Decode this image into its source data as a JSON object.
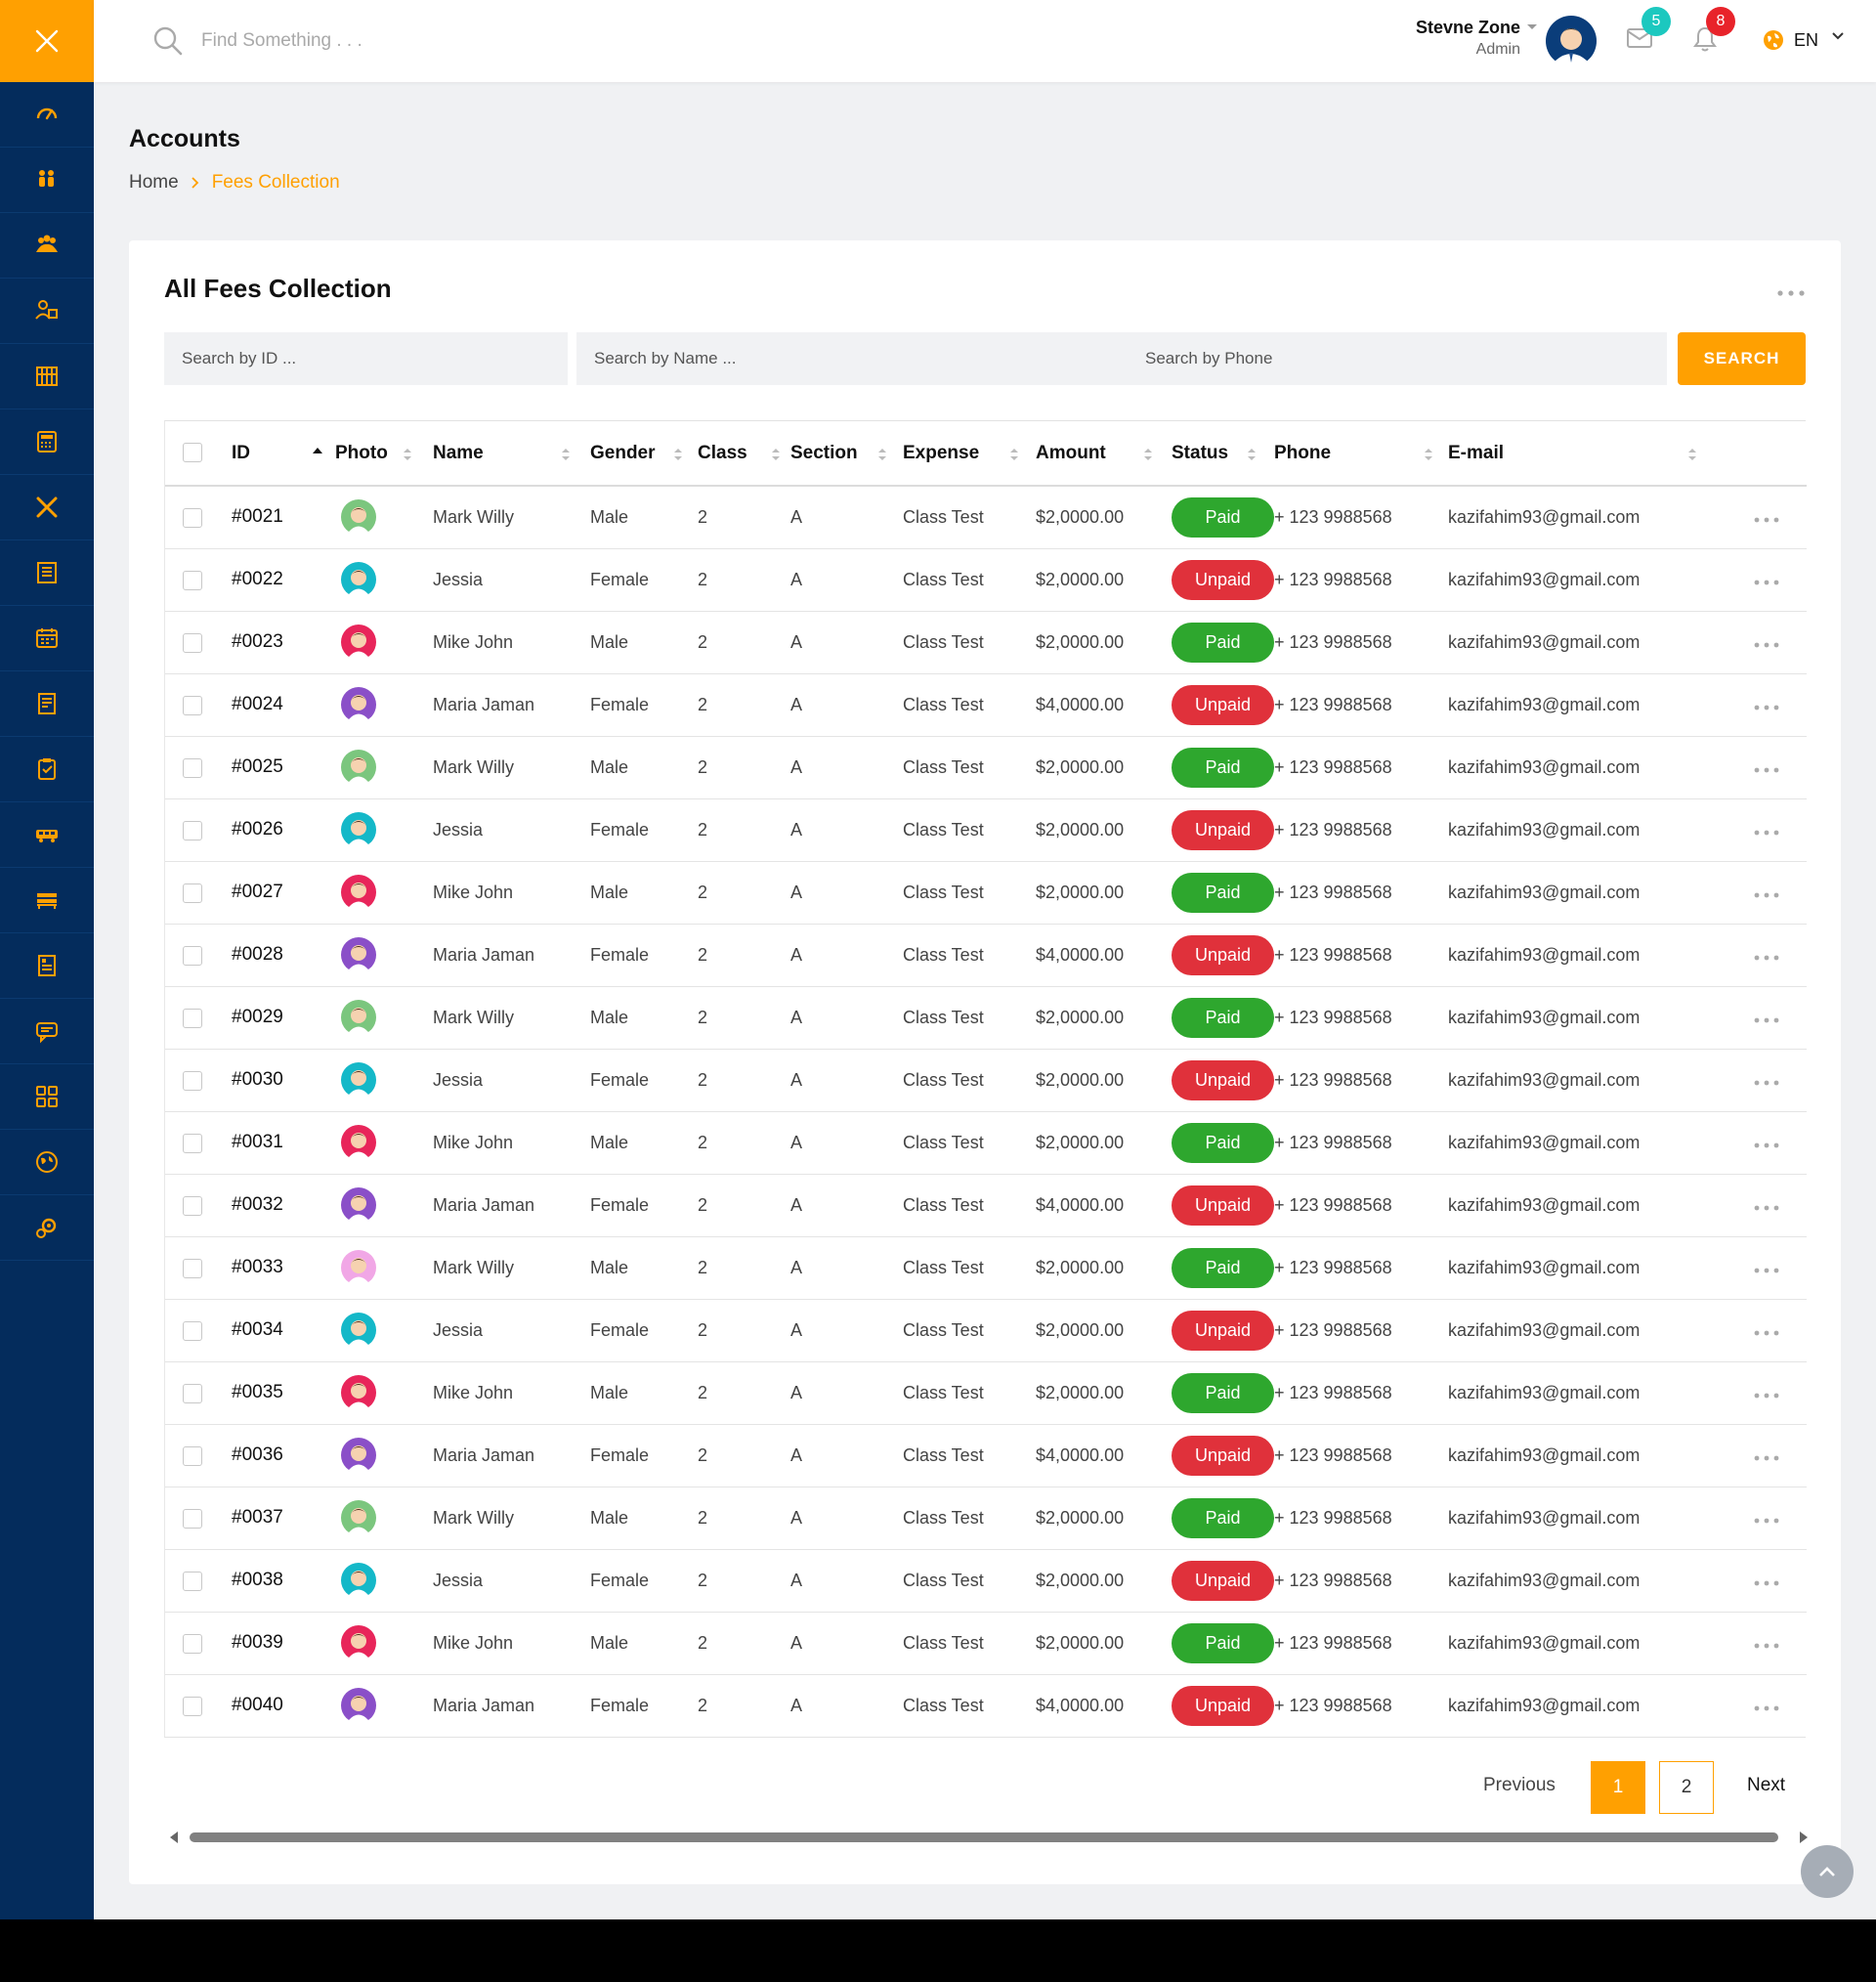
{
  "header": {
    "search_placeholder": "Find Something . . .",
    "user_name": "Stevne Zone",
    "user_role": "Admin",
    "messages_count": "5",
    "notifications_count": "8",
    "language": "EN"
  },
  "sidebar": {
    "items": [
      "dashboard-icon",
      "students-icon",
      "parents-icon",
      "teachers-icon",
      "library-icon",
      "accounts-icon",
      "subjects-icon",
      "class-routine-icon",
      "attendance-icon",
      "exam-icon",
      "result-icon",
      "transport-icon",
      "hostel-icon",
      "notice-icon",
      "message-icon",
      "ui-elements-icon",
      "map-icon",
      "settings-icon"
    ]
  },
  "page": {
    "title": "Accounts",
    "breadcrumb_home": "Home",
    "breadcrumb_current": "Fees Collection"
  },
  "card": {
    "title": "All Fees Collection",
    "filter_id_placeholder": "Search by ID ...",
    "filter_name_placeholder": "Search by Name ...",
    "filter_phone_placeholder": "Search by Phone",
    "search_button": "SEARCH"
  },
  "table": {
    "columns": [
      "ID",
      "Photo",
      "Name",
      "Gender",
      "Class",
      "Section",
      "Expense",
      "Amount",
      "Status",
      "Phone",
      "E-mail"
    ],
    "rows": [
      {
        "id": "#0021",
        "avatar": "green",
        "name": "Mark Willy",
        "gender": "Male",
        "class": "2",
        "section": "A",
        "expense": "Class Test",
        "amount": "$2,0000.00",
        "status": "Paid",
        "phone": "+ 123 9988568",
        "email": "kazifahim93@gmail.com"
      },
      {
        "id": "#0022",
        "avatar": "teal",
        "name": "Jessia",
        "gender": "Female",
        "class": "2",
        "section": "A",
        "expense": "Class Test",
        "amount": "$2,0000.00",
        "status": "Unpaid",
        "phone": "+ 123 9988568",
        "email": "kazifahim93@gmail.com"
      },
      {
        "id": "#0023",
        "avatar": "pink",
        "name": "Mike John",
        "gender": "Male",
        "class": "2",
        "section": "A",
        "expense": "Class Test",
        "amount": "$2,0000.00",
        "status": "Paid",
        "phone": "+ 123 9988568",
        "email": "kazifahim93@gmail.com"
      },
      {
        "id": "#0024",
        "avatar": "purple",
        "name": "Maria Jaman",
        "gender": "Female",
        "class": "2",
        "section": "A",
        "expense": "Class Test",
        "amount": "$4,0000.00",
        "status": "Unpaid",
        "phone": "+ 123 9988568",
        "email": "kazifahim93@gmail.com"
      },
      {
        "id": "#0025",
        "avatar": "green",
        "name": "Mark Willy",
        "gender": "Male",
        "class": "2",
        "section": "A",
        "expense": "Class Test",
        "amount": "$2,0000.00",
        "status": "Paid",
        "phone": "+ 123 9988568",
        "email": "kazifahim93@gmail.com"
      },
      {
        "id": "#0026",
        "avatar": "teal",
        "name": "Jessia",
        "gender": "Female",
        "class": "2",
        "section": "A",
        "expense": "Class Test",
        "amount": "$2,0000.00",
        "status": "Unpaid",
        "phone": "+ 123 9988568",
        "email": "kazifahim93@gmail.com"
      },
      {
        "id": "#0027",
        "avatar": "pink",
        "name": "Mike John",
        "gender": "Male",
        "class": "2",
        "section": "A",
        "expense": "Class Test",
        "amount": "$2,0000.00",
        "status": "Paid",
        "phone": "+ 123 9988568",
        "email": "kazifahim93@gmail.com"
      },
      {
        "id": "#0028",
        "avatar": "purple",
        "name": "Maria Jaman",
        "gender": "Female",
        "class": "2",
        "section": "A",
        "expense": "Class Test",
        "amount": "$4,0000.00",
        "status": "Unpaid",
        "phone": "+ 123 9988568",
        "email": "kazifahim93@gmail.com"
      },
      {
        "id": "#0029",
        "avatar": "green",
        "name": "Mark Willy",
        "gender": "Male",
        "class": "2",
        "section": "A",
        "expense": "Class Test",
        "amount": "$2,0000.00",
        "status": "Paid",
        "phone": "+ 123 9988568",
        "email": "kazifahim93@gmail.com"
      },
      {
        "id": "#0030",
        "avatar": "teal",
        "name": "Jessia",
        "gender": "Female",
        "class": "2",
        "section": "A",
        "expense": "Class Test",
        "amount": "$2,0000.00",
        "status": "Unpaid",
        "phone": "+ 123 9988568",
        "email": "kazifahim93@gmail.com"
      },
      {
        "id": "#0031",
        "avatar": "pink",
        "name": "Mike John",
        "gender": "Male",
        "class": "2",
        "section": "A",
        "expense": "Class Test",
        "amount": "$2,0000.00",
        "status": "Paid",
        "phone": "+ 123 9988568",
        "email": "kazifahim93@gmail.com"
      },
      {
        "id": "#0032",
        "avatar": "purple",
        "name": "Maria Jaman",
        "gender": "Female",
        "class": "2",
        "section": "A",
        "expense": "Class Test",
        "amount": "$4,0000.00",
        "status": "Unpaid",
        "phone": "+ 123 9988568",
        "email": "kazifahim93@gmail.com"
      },
      {
        "id": "#0033",
        "avatar": "lightpink",
        "name": "Mark Willy",
        "gender": "Male",
        "class": "2",
        "section": "A",
        "expense": "Class Test",
        "amount": "$2,0000.00",
        "status": "Paid",
        "phone": "+ 123 9988568",
        "email": "kazifahim93@gmail.com"
      },
      {
        "id": "#0034",
        "avatar": "teal",
        "name": "Jessia",
        "gender": "Female",
        "class": "2",
        "section": "A",
        "expense": "Class Test",
        "amount": "$2,0000.00",
        "status": "Unpaid",
        "phone": "+ 123 9988568",
        "email": "kazifahim93@gmail.com"
      },
      {
        "id": "#0035",
        "avatar": "pink",
        "name": "Mike John",
        "gender": "Male",
        "class": "2",
        "section": "A",
        "expense": "Class Test",
        "amount": "$2,0000.00",
        "status": "Paid",
        "phone": "+ 123 9988568",
        "email": "kazifahim93@gmail.com"
      },
      {
        "id": "#0036",
        "avatar": "purple",
        "name": "Maria Jaman",
        "gender": "Female",
        "class": "2",
        "section": "A",
        "expense": "Class Test",
        "amount": "$4,0000.00",
        "status": "Unpaid",
        "phone": "+ 123 9988568",
        "email": "kazifahim93@gmail.com"
      },
      {
        "id": "#0037",
        "avatar": "green",
        "name": "Mark Willy",
        "gender": "Male",
        "class": "2",
        "section": "A",
        "expense": "Class Test",
        "amount": "$2,0000.00",
        "status": "Paid",
        "phone": "+ 123 9988568",
        "email": "kazifahim93@gmail.com"
      },
      {
        "id": "#0038",
        "avatar": "teal",
        "name": "Jessia",
        "gender": "Female",
        "class": "2",
        "section": "A",
        "expense": "Class Test",
        "amount": "$2,0000.00",
        "status": "Unpaid",
        "phone": "+ 123 9988568",
        "email": "kazifahim93@gmail.com"
      },
      {
        "id": "#0039",
        "avatar": "pink",
        "name": "Mike John",
        "gender": "Male",
        "class": "2",
        "section": "A",
        "expense": "Class Test",
        "amount": "$2,0000.00",
        "status": "Paid",
        "phone": "+ 123 9988568",
        "email": "kazifahim93@gmail.com"
      },
      {
        "id": "#0040",
        "avatar": "purple",
        "name": "Maria Jaman",
        "gender": "Female",
        "class": "2",
        "section": "A",
        "expense": "Class Test",
        "amount": "$4,0000.00",
        "status": "Unpaid",
        "phone": "+ 123 9988568",
        "email": "kazifahim93@gmail.com"
      }
    ]
  },
  "pagination": {
    "previous": "Previous",
    "pages": [
      "1",
      "2"
    ],
    "current": "1",
    "next": "Next"
  },
  "colors": {
    "accent": "#ffa001",
    "sidebar": "#042c5c",
    "paid": "#2ea72e",
    "unpaid": "#e0313b",
    "badge_teal": "#1cc8bf",
    "badge_red": "#e8232a",
    "avatar_green": "#7bc67e",
    "avatar_teal": "#14b8c8",
    "avatar_pink": "#e8255a",
    "avatar_purple": "#8a4fc8",
    "avatar_lightpink": "#f1a7e6"
  }
}
